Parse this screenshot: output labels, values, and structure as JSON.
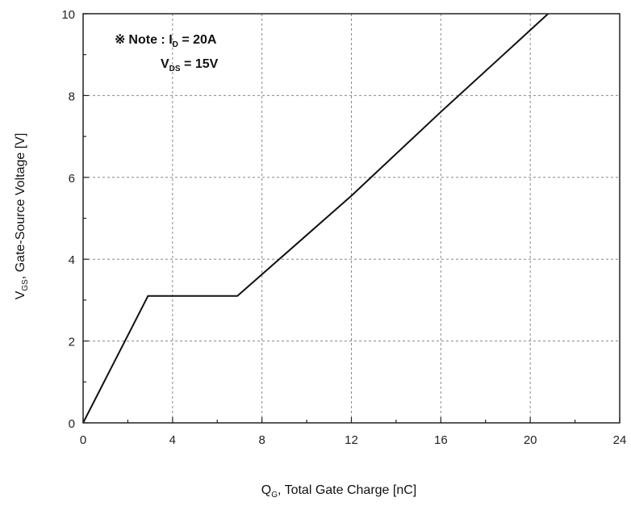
{
  "chart_data": {
    "type": "line",
    "title": "",
    "xlabel": {
      "main": "Q",
      "sub": "G",
      "rest": ", Total Gate Charge [nC]"
    },
    "ylabel": {
      "main": "V",
      "sub": "GS",
      "rest": ", Gate-Source Voltage [V]"
    },
    "xlim": [
      0,
      24
    ],
    "ylim": [
      0,
      10
    ],
    "xticks": [
      0,
      4,
      8,
      12,
      16,
      20,
      24
    ],
    "yticks": [
      0,
      2,
      4,
      6,
      8,
      10
    ],
    "minor_xticks": [
      2,
      6,
      10,
      14,
      18,
      22
    ],
    "minor_yticks": [
      1,
      3,
      5,
      7,
      9
    ],
    "grid": true,
    "note": {
      "symbol": "※",
      "label": "Note : ",
      "line1_main": "I",
      "line1_sub": "D",
      "line1_rest": " = 20A",
      "line2_main": "V",
      "line2_sub": "DS",
      "line2_rest": " = 15V"
    },
    "series": [
      {
        "x": [
          0,
          2.9,
          6.9,
          12,
          16,
          20,
          20.8
        ],
        "y": [
          0,
          3.1,
          3.1,
          5.55,
          7.6,
          9.6,
          10
        ]
      }
    ]
  }
}
